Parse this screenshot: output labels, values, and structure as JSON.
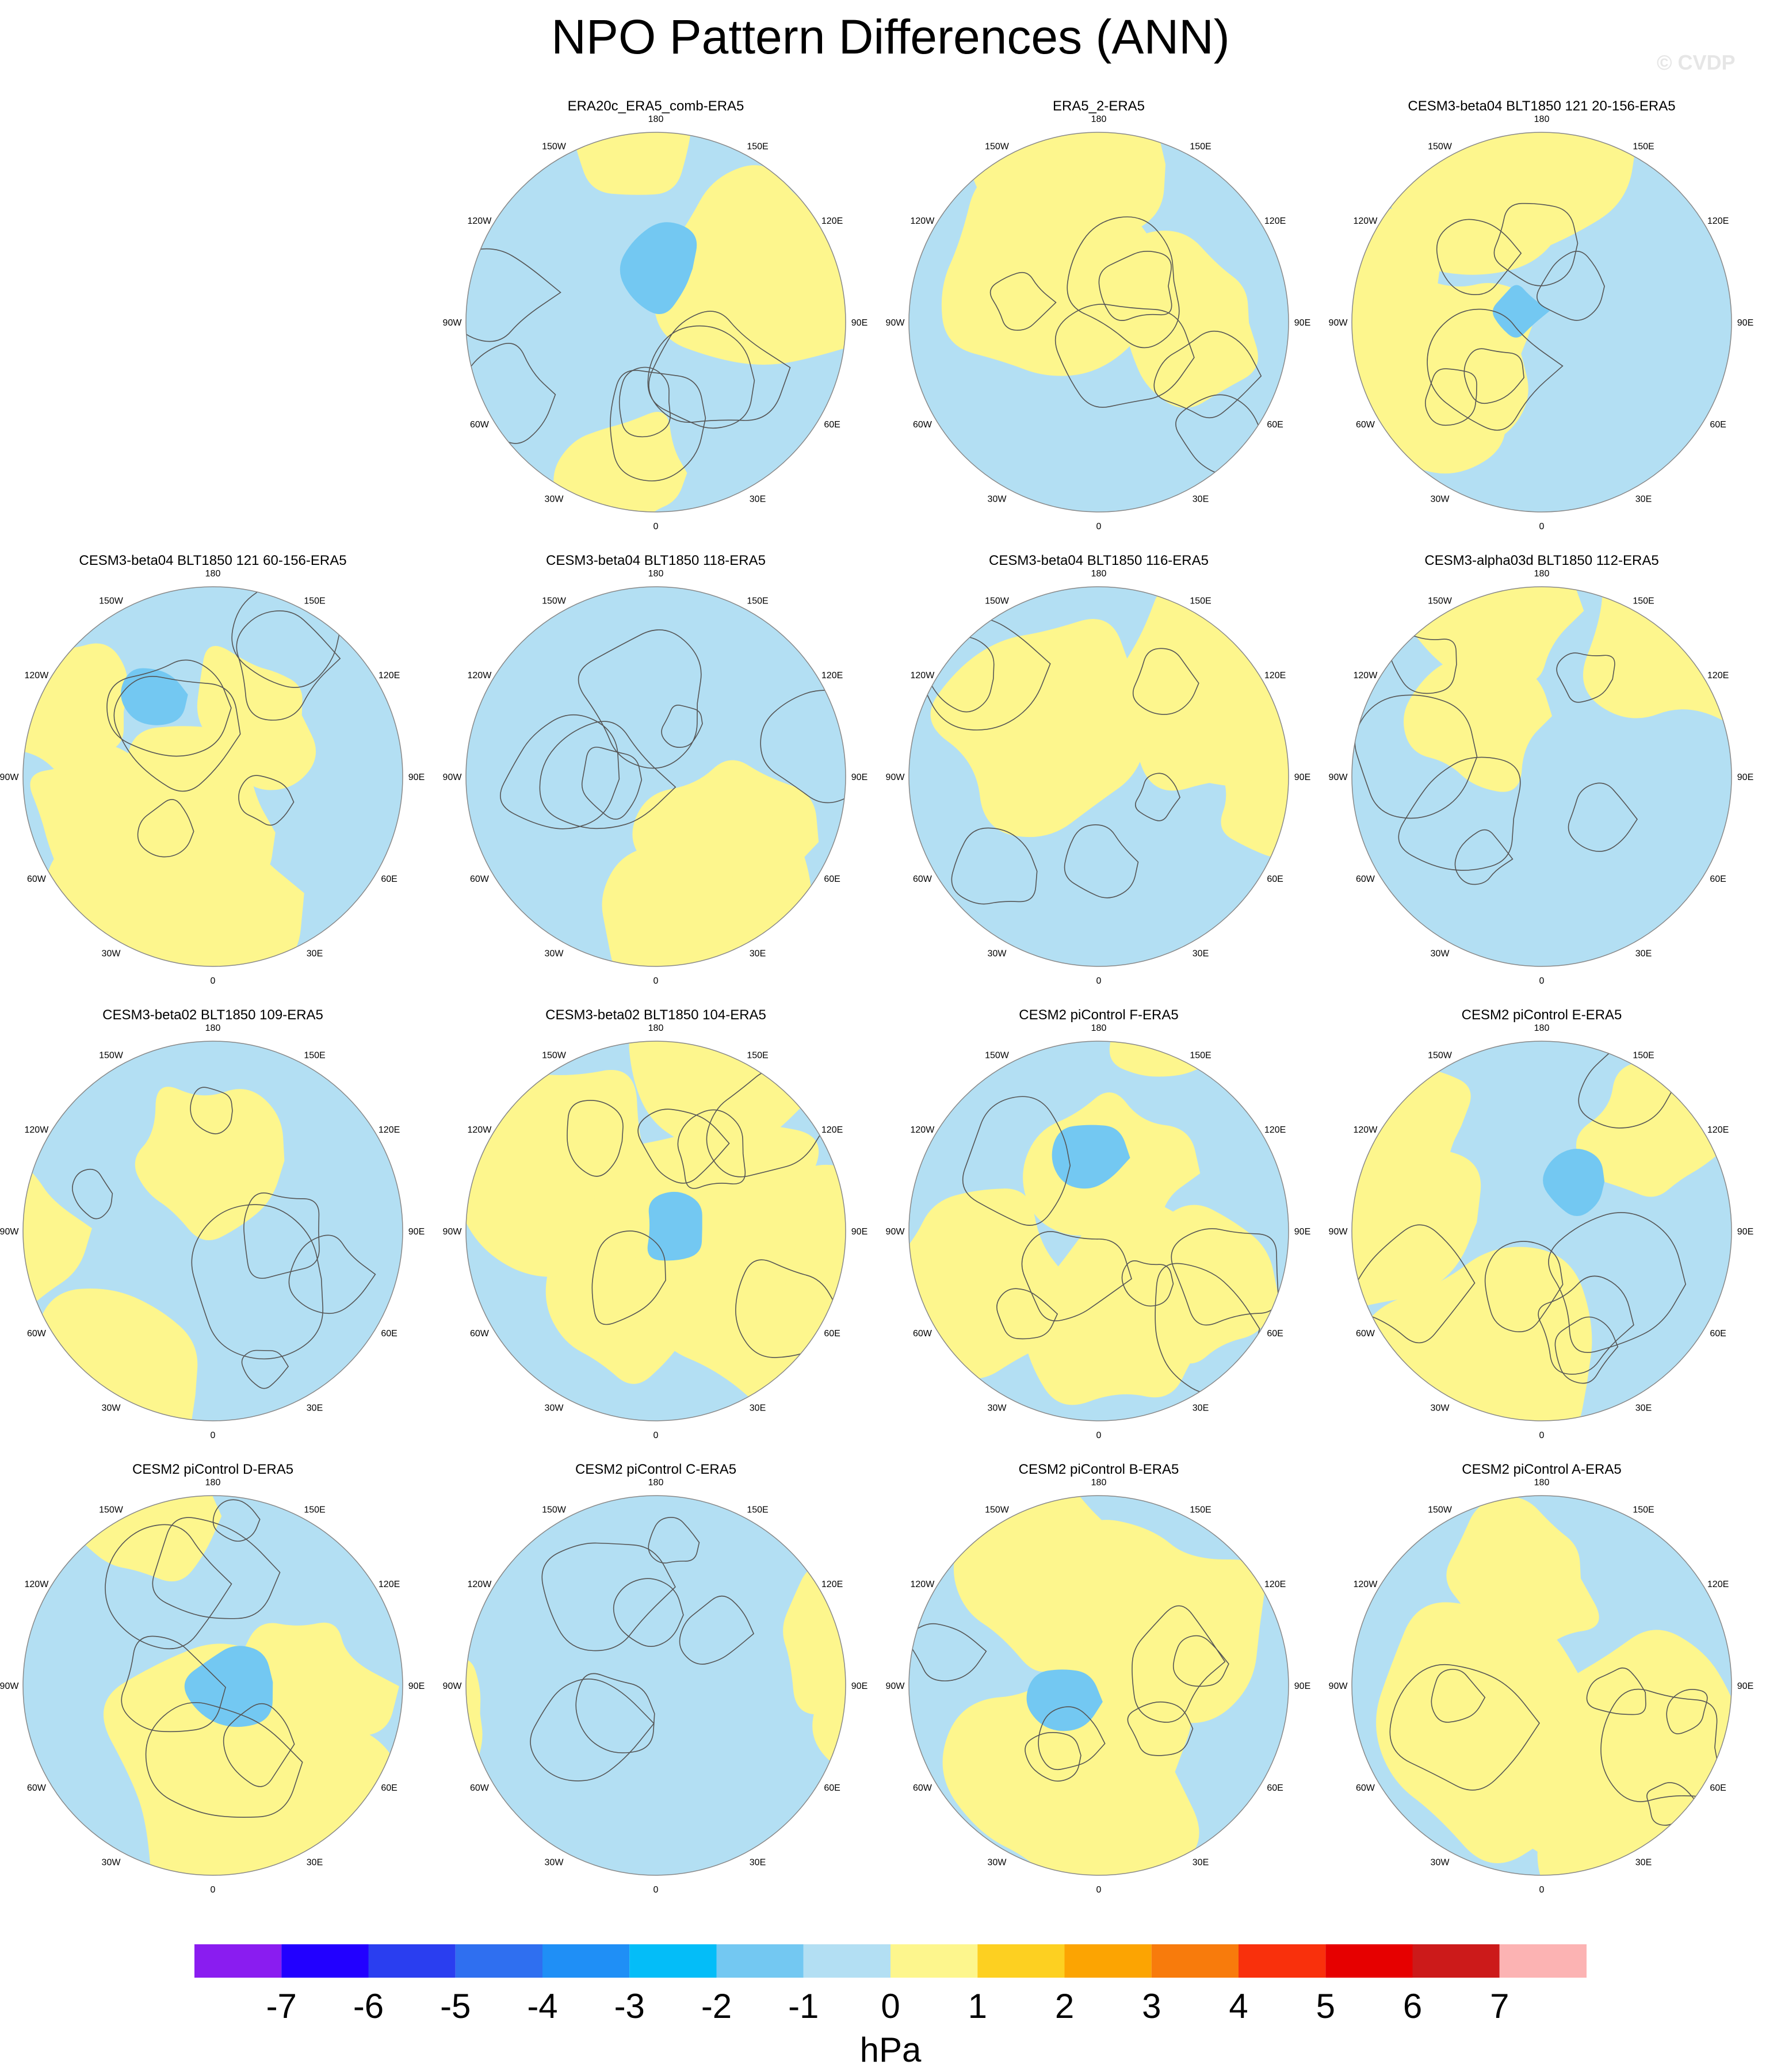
{
  "title": "NPO Pattern Differences (ANN)",
  "watermark": "© CVDP",
  "colorbar": {
    "units": "hPa",
    "tick_labels": [
      "-7",
      "-6",
      "-5",
      "-4",
      "-3",
      "-2",
      "-1",
      "0",
      "1",
      "2",
      "3",
      "4",
      "5",
      "6",
      "7"
    ],
    "bin_colors": [
      "#8a1cf0",
      "#2200ff",
      "#2a3ef0",
      "#2f6ff0",
      "#1f8ff6",
      "#04bdf8",
      "#73c8f2",
      "#b3dff3",
      "#fdf68d",
      "#fdd021",
      "#fca402",
      "#f87b0c",
      "#f9300c",
      "#e60000",
      "#cc1a1a",
      "#fcb3b3"
    ]
  },
  "longitude_labels": [
    "180",
    "150E",
    "120E",
    "90E",
    "60E",
    "30E",
    "0",
    "30W",
    "60W",
    "90W",
    "120W",
    "150W"
  ],
  "map_colors": {
    "neg_1": "#b3dff3",
    "pos_1": "#fdf68d",
    "neg_2": "#73c8f2",
    "pos_2": "#fdd021",
    "coast": "#555555",
    "rim": "#888888"
  },
  "panels": [
    {
      "title": "ERA20c_ERA5_comb-ERA5",
      "row": 0,
      "col": 1
    },
    {
      "title": "ERA5_2-ERA5",
      "row": 0,
      "col": 2
    },
    {
      "title": "CESM3-beta04 BLT1850 121 20-156-ERA5",
      "row": 0,
      "col": 3
    },
    {
      "title": "CESM3-beta04 BLT1850 121 60-156-ERA5",
      "row": 1,
      "col": 0
    },
    {
      "title": "CESM3-beta04 BLT1850 118-ERA5",
      "row": 1,
      "col": 1
    },
    {
      "title": "CESM3-beta04 BLT1850 116-ERA5",
      "row": 1,
      "col": 2
    },
    {
      "title": "CESM3-alpha03d BLT1850 112-ERA5",
      "row": 1,
      "col": 3
    },
    {
      "title": "CESM3-beta02 BLT1850 109-ERA5",
      "row": 2,
      "col": 0
    },
    {
      "title": "CESM3-beta02 BLT1850 104-ERA5",
      "row": 2,
      "col": 1
    },
    {
      "title": "CESM2 piControl F-ERA5",
      "row": 2,
      "col": 2
    },
    {
      "title": "CESM2 piControl E-ERA5",
      "row": 2,
      "col": 3
    },
    {
      "title": "CESM2 piControl D-ERA5",
      "row": 3,
      "col": 0
    },
    {
      "title": "CESM2 piControl C-ERA5",
      "row": 3,
      "col": 1
    },
    {
      "title": "CESM2 piControl B-ERA5",
      "row": 3,
      "col": 2
    },
    {
      "title": "CESM2 piControl A-ERA5",
      "row": 3,
      "col": 3
    }
  ]
}
